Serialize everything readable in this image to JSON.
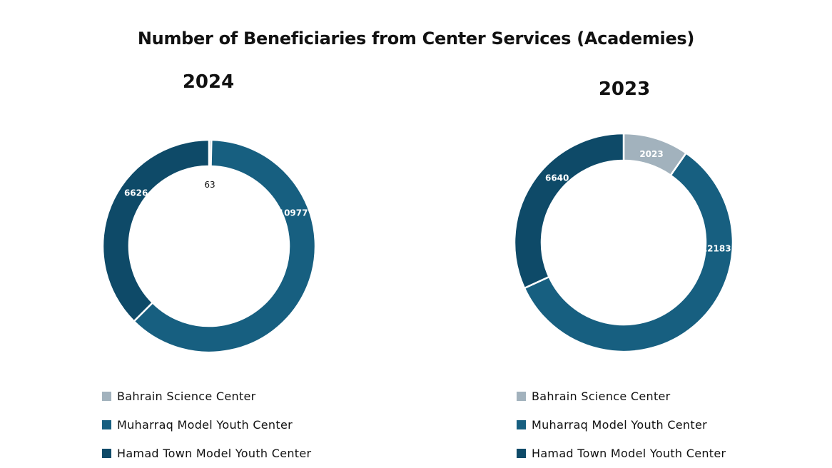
{
  "title": "Number of Beneficiaries from Center Services (Academies)",
  "colors": {
    "Bahrain Science Center": "#a2b2bd",
    "Muharraq Model Youth Center": "#175f80",
    "Hamad Town Model Youth Center": "#0e4a68"
  },
  "chart_data": [
    {
      "type": "pie",
      "title": "2024",
      "categories": [
        "Bahrain Science Center",
        "Muharraq Model Youth Center",
        "Hamad Town Model Youth Center"
      ],
      "values": [
        63,
        10977,
        6626
      ],
      "legend": [
        "Bahrain Science Center",
        "Muharraq Model Youth Center",
        "Hamad Town Model Youth Center"
      ],
      "legend_position": "bottom"
    },
    {
      "type": "pie",
      "title": "2023",
      "categories": [
        "Bahrain Science Center",
        "Muharraq Model Youth Center",
        "Hamad Town Model Youth Center"
      ],
      "values": [
        2023,
        12183,
        6640
      ],
      "legend": [
        "Bahrain Science Center",
        "Muharraq Model Youth Center",
        "Hamad Town Model Youth Center"
      ],
      "legend_position": "bottom"
    }
  ]
}
